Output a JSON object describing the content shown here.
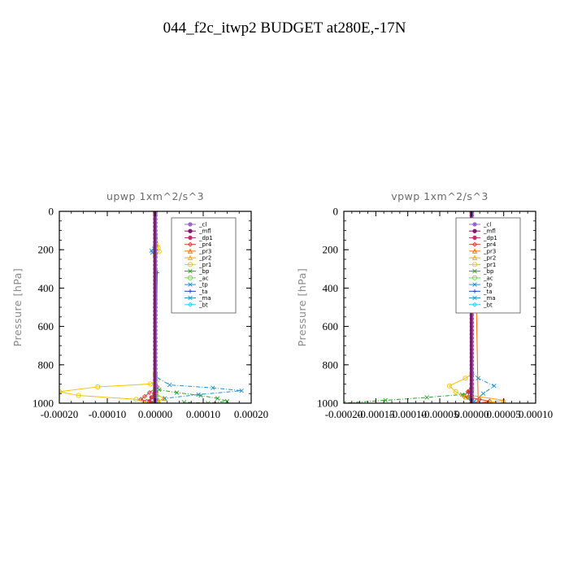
{
  "figure_title": "044_f2c_itwp2  BUDGET at280E,-17N",
  "chart_data": [
    {
      "type": "line",
      "title": "upwp   1xm^2/s^3",
      "ylabel": "Pressure [hPa]",
      "xlabel": "",
      "xlim": [
        -0.0002,
        0.0002
      ],
      "ylim": [
        1000,
        0
      ],
      "xticks": [
        "-0.00020",
        "-0.00010",
        "0.00000",
        "0.00010",
        "0.00020"
      ],
      "xtick_values": [
        -0.0002,
        -0.0001,
        0,
        0.0001,
        0.0002
      ],
      "yticks": [
        "0",
        "200",
        "400",
        "600",
        "800",
        "1000"
      ],
      "ytick_values": [
        0,
        200,
        400,
        600,
        800,
        1000
      ],
      "legend_position": "top-right",
      "series": [
        {
          "name": "_cl",
          "color": "#9966cc",
          "marker": "dot",
          "x": [
            0,
            0
          ],
          "y": [
            0,
            1000
          ]
        },
        {
          "name": "_mfl",
          "color": "#7b1f6a",
          "marker": "dot",
          "x": [
            0,
            0
          ],
          "y": [
            0,
            1000
          ]
        },
        {
          "name": "_dp1",
          "color": "#c0306a",
          "marker": "dot",
          "x": [
            0,
            0,
            0,
            -2e-06,
            -8e-06,
            -1.2e-05,
            -6e-06
          ],
          "y": [
            0,
            850,
            920,
            950,
            970,
            990,
            1000
          ]
        },
        {
          "name": "_pr4",
          "color": "#d23b3b",
          "marker": "diamond",
          "x": [
            0,
            0,
            4e-06,
            -1.2e-05,
            -2.2e-05,
            -3e-05,
            -1.8e-05,
            -6e-06
          ],
          "y": [
            0,
            880,
            915,
            945,
            965,
            980,
            990,
            1000
          ]
        },
        {
          "name": "_pr3",
          "color": "#ff6a00",
          "marker": "tri",
          "x": [
            0,
            0,
            2e-06,
            -4e-06,
            6e-06,
            -2e-06
          ],
          "y": [
            0,
            900,
            935,
            960,
            985,
            1000
          ]
        },
        {
          "name": "_pr2",
          "color": "#ffa500",
          "marker": "tri",
          "x": [
            0,
            0,
            0,
            4e-06,
            1.8e-05,
            6e-06,
            0
          ],
          "y": [
            0,
            880,
            930,
            955,
            975,
            990,
            1000
          ]
        },
        {
          "name": "_pr1",
          "color": "#f2c200",
          "marker": "circle",
          "x": [
            0,
            6e-06,
            8e-06,
            0,
            0,
            4e-06,
            -1e-05,
            -0.00012,
            -0.0002,
            -0.00016,
            -4e-05,
            -1.8e-05
          ],
          "y": [
            0,
            190,
            210,
            230,
            850,
            880,
            900,
            915,
            940,
            960,
            980,
            1000
          ]
        },
        {
          "name": "_bp",
          "color": "#2ca02c",
          "marker": "x",
          "x": [
            0,
            0,
            8e-06,
            4.5e-05,
            9.5e-05,
            0.00013,
            0.00015,
            0.00011,
            6e-05
          ],
          "y": [
            0,
            910,
            930,
            945,
            960,
            975,
            990,
            1000,
            995
          ]
        },
        {
          "name": "_ac",
          "color": "#66dd44",
          "marker": "circle",
          "x": [
            0,
            0,
            2e-06,
            4e-06,
            0
          ],
          "y": [
            0,
            930,
            960,
            985,
            1000
          ]
        },
        {
          "name": "_tp",
          "color": "#1e90d0",
          "marker": "x",
          "x": [
            0,
            0,
            -2e-06,
            -8e-06,
            -6e-06,
            0,
            0,
            3e-05,
            0.00012,
            0.00018,
            9e-05,
            2e-05
          ],
          "y": [
            0,
            180,
            195,
            205,
            215,
            230,
            860,
            905,
            920,
            935,
            955,
            975
          ]
        },
        {
          "name": "_ta",
          "color": "#1f3fd0",
          "marker": "plus",
          "x": [
            0,
            0,
            2e-06,
            4e-06,
            0
          ],
          "y": [
            0,
            300,
            310,
            320,
            1000
          ]
        },
        {
          "name": "_ma",
          "color": "#1aa0b0",
          "marker": "none",
          "x": [
            0,
            0
          ],
          "y": [
            0,
            1000
          ]
        },
        {
          "name": "_bt",
          "color": "#22d2e6",
          "marker": "diamond",
          "x": [
            0,
            0
          ],
          "y": [
            0,
            1000
          ]
        }
      ]
    },
    {
      "type": "line",
      "title": "vpwp   1xm^2/s^3",
      "ylabel": "Pressure [hPa]",
      "xlabel": "",
      "xlim": [
        -0.0002,
        0.0001
      ],
      "ylim": [
        1000,
        0
      ],
      "xticks": [
        "-0.00020",
        "-0.00015",
        "-0.00010",
        "-0.00005",
        "0.00000",
        "0.00005",
        "0.00010"
      ],
      "xtick_values": [
        -0.0002,
        -0.00015,
        -0.0001,
        -5e-05,
        0,
        5e-05,
        0.0001
      ],
      "yticks": [
        "0",
        "200",
        "400",
        "600",
        "800",
        "1000"
      ],
      "ytick_values": [
        0,
        200,
        400,
        600,
        800,
        1000
      ],
      "legend_position": "top-right",
      "series": [
        {
          "name": "_cl",
          "color": "#9966cc",
          "marker": "dot",
          "x": [
            0,
            0
          ],
          "y": [
            0,
            1000
          ]
        },
        {
          "name": "_mfl",
          "color": "#7b1f6a",
          "marker": "dot",
          "x": [
            0,
            0
          ],
          "y": [
            0,
            1000
          ]
        },
        {
          "name": "_dp1",
          "color": "#c0306a",
          "marker": "dot",
          "x": [
            0,
            0,
            -4e-06,
            -6e-06,
            0
          ],
          "y": [
            0,
            900,
            940,
            970,
            1000
          ]
        },
        {
          "name": "_pr4",
          "color": "#d23b3b",
          "marker": "diamond",
          "x": [
            0,
            0,
            -6e-06,
            -1.2e-05,
            1.2e-05,
            2.8e-05,
            1e-05
          ],
          "y": [
            0,
            900,
            940,
            965,
            980,
            990,
            1000
          ]
        },
        {
          "name": "_pr3",
          "color": "#ff6a00",
          "marker": "tri",
          "x": [
            0,
            0,
            2e-06,
            6e-06,
            1e-05,
            4e-06
          ],
          "y": [
            0,
            200,
            230,
            250,
            990,
            1000
          ]
        },
        {
          "name": "_pr2",
          "color": "#ffa500",
          "marker": "tri",
          "x": [
            0,
            0,
            5e-05,
            3e-05,
            0
          ],
          "y": [
            0,
            960,
            985,
            995,
            1000
          ]
        },
        {
          "name": "_pr1",
          "color": "#f2c200",
          "marker": "circle",
          "x": [
            0,
            0,
            -6e-06,
            -1.5e-05,
            -8e-06,
            0,
            0,
            -1e-05,
            -3.5e-05,
            -2.5e-05,
            -1e-05
          ],
          "y": [
            0,
            140,
            220,
            280,
            330,
            370,
            850,
            870,
            910,
            940,
            970
          ]
        },
        {
          "name": "_bp",
          "color": "#2ca02c",
          "marker": "x",
          "x": [
            0,
            0,
            -1.5e-05,
            -7e-05,
            -0.000135,
            -0.0002
          ],
          "y": [
            0,
            940,
            955,
            970,
            985,
            1000
          ]
        },
        {
          "name": "_ac",
          "color": "#66dd44",
          "marker": "circle",
          "x": [
            0,
            0,
            -2e-06,
            0
          ],
          "y": [
            0,
            930,
            970,
            1000
          ]
        },
        {
          "name": "_tp",
          "color": "#1e90d0",
          "marker": "x",
          "x": [
            0,
            -2e-06,
            -6e-06,
            -1e-05,
            -2e-06,
            0,
            0,
            1e-05,
            3.5e-05,
            1.8e-05,
            4e-06
          ],
          "y": [
            0,
            140,
            190,
            220,
            280,
            330,
            840,
            870,
            910,
            950,
            990
          ]
        },
        {
          "name": "_ta",
          "color": "#1f3fd0",
          "marker": "plus",
          "x": [
            0,
            0,
            -4e-06,
            0,
            0
          ],
          "y": [
            0,
            150,
            180,
            210,
            1000
          ]
        },
        {
          "name": "_ma",
          "color": "#1aa0b0",
          "marker": "none",
          "x": [
            0,
            0
          ],
          "y": [
            0,
            1000
          ]
        },
        {
          "name": "_bt",
          "color": "#22d2e6",
          "marker": "diamond",
          "x": [
            0,
            0
          ],
          "y": [
            0,
            1000
          ]
        }
      ]
    }
  ]
}
